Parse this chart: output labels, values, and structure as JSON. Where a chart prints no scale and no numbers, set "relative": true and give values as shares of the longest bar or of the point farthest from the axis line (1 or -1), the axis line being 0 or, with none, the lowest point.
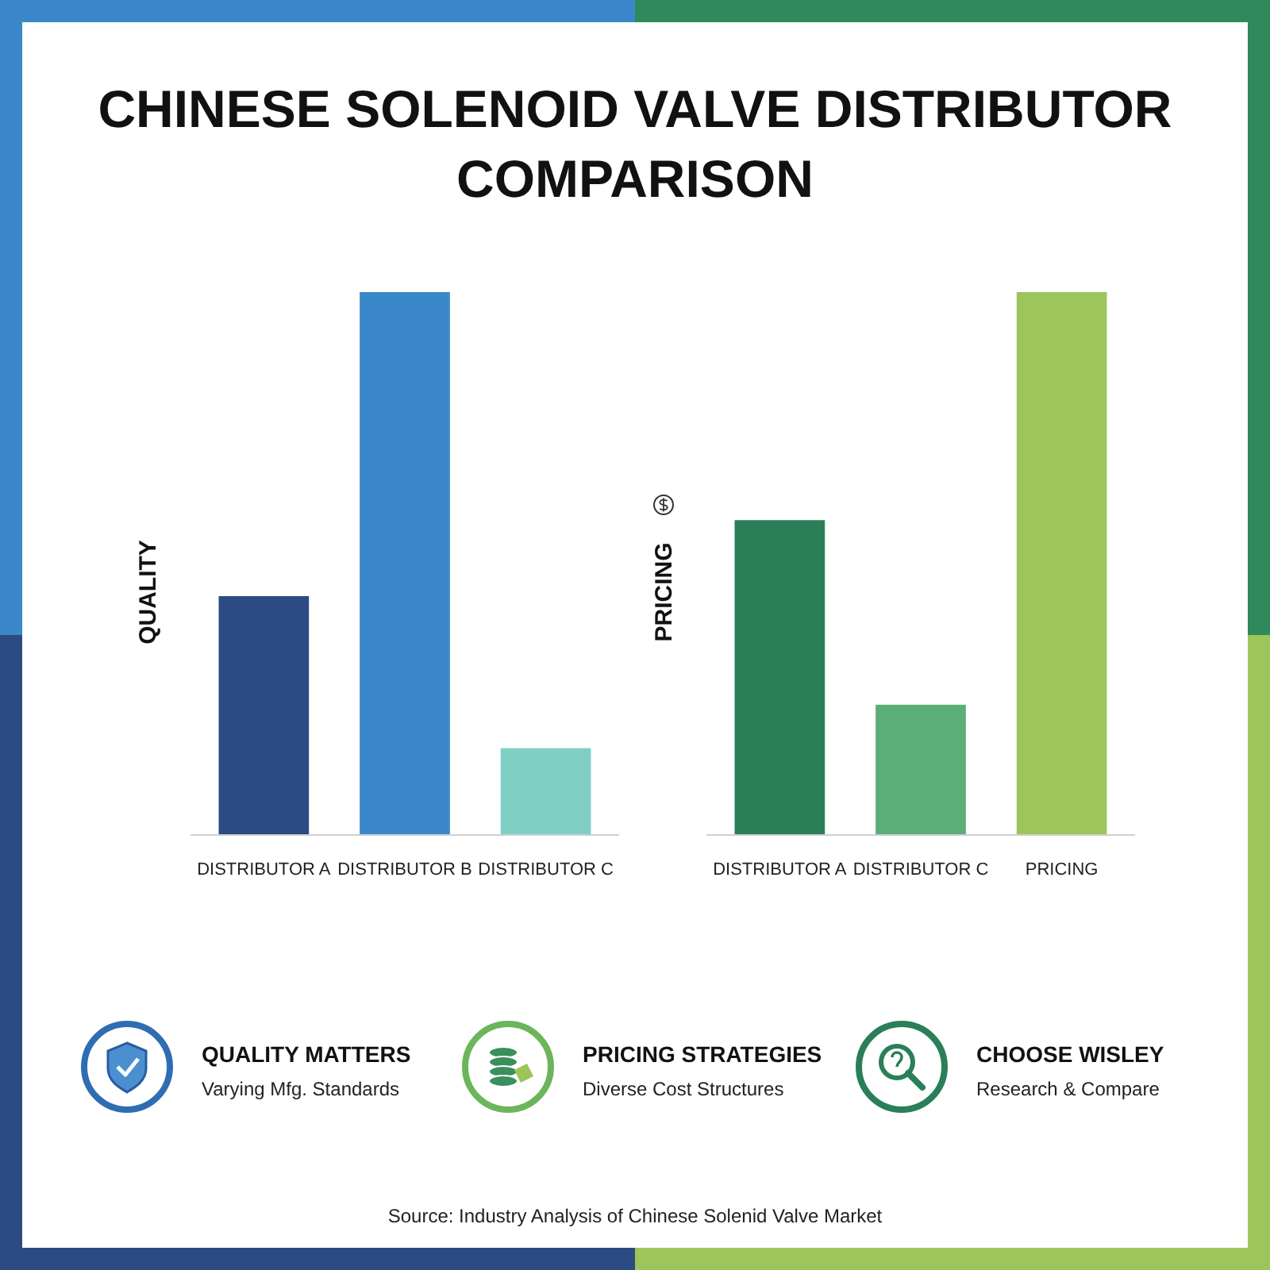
{
  "chart_data": [
    {
      "type": "bar",
      "title": "CHINESE SOLENOID VALVE DISTRIBUTOR COMPARISON",
      "ylabel": "QUALITY",
      "categories": [
        "DISTRIBUTOR A",
        "DISTRIBUTOR B",
        "DISTRIBUTOR C"
      ],
      "values": [
        0.44,
        1,
        0.16
      ],
      "colors": [
        "#2b4b82",
        "#3a88c9",
        "#80cfc5"
      ],
      "relative": true
    },
    {
      "type": "bar",
      "ylabel": "PRICING",
      "categories": [
        "DISTRIBUTOR A",
        "DISTRIBUTOR C",
        "PRICING"
      ],
      "values": [
        0.58,
        0.24,
        1
      ],
      "colors": [
        "#2a7f58",
        "#5cae79",
        "#9cc55b"
      ],
      "relative": true
    },
    {
      "type": "other",
      "annotations": [
        "QUALITY MATTERS",
        "Varying Mfg. Standards",
        "PRICING STRATEGIES",
        "Diverse Cost Structures",
        "CHOOSE WISLEY",
        "Research & Compare",
        "Source: Industry Analysis of Chinese Solenid Valve Market"
      ]
    }
  ]
}
